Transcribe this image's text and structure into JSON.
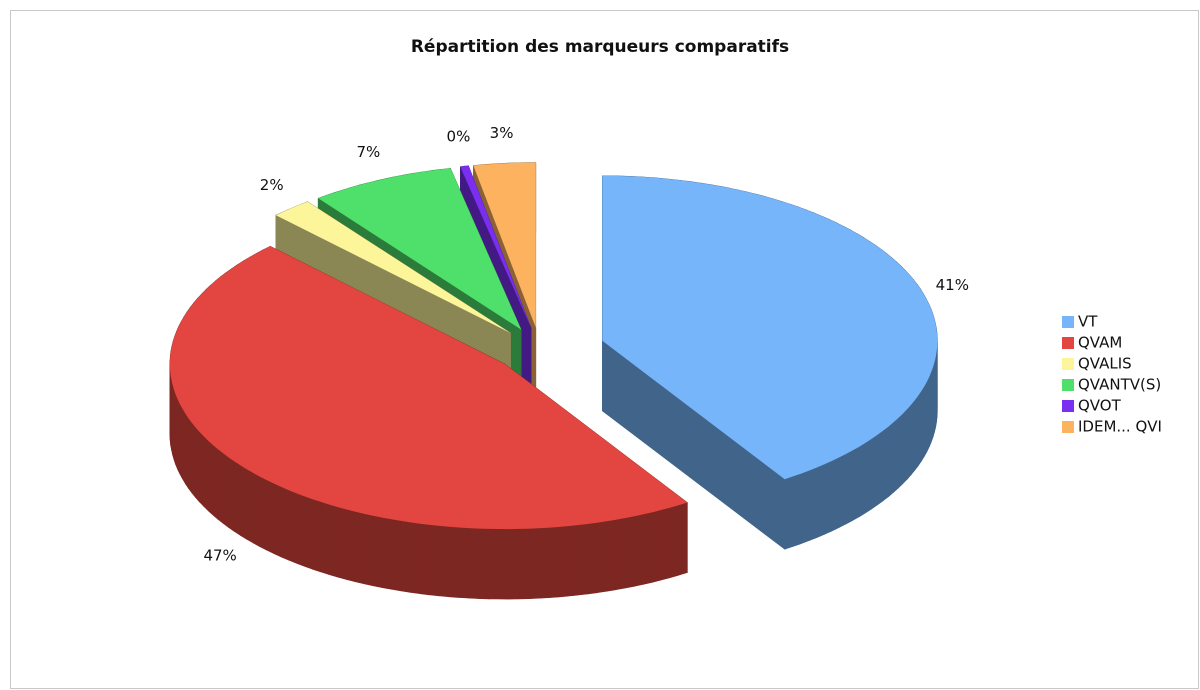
{
  "chart_data": {
    "type": "pie",
    "title": "Répartition des marqueurs comparatifs",
    "categories": [
      "VT",
      "QVAM",
      "QVALIS",
      "QVANTV(S)",
      "QVOT",
      "IDEM... QVI"
    ],
    "values": [
      41,
      47,
      2,
      7,
      0.4,
      3
    ],
    "value_labels": [
      "41%",
      "47%",
      "2%",
      "7%",
      "0%",
      "3%"
    ],
    "colors": [
      "#77b5fa",
      "#e34640",
      "#fdf59a",
      "#4fe06b",
      "#7a2ff0",
      "#fdb25f"
    ],
    "legend": "right"
  }
}
